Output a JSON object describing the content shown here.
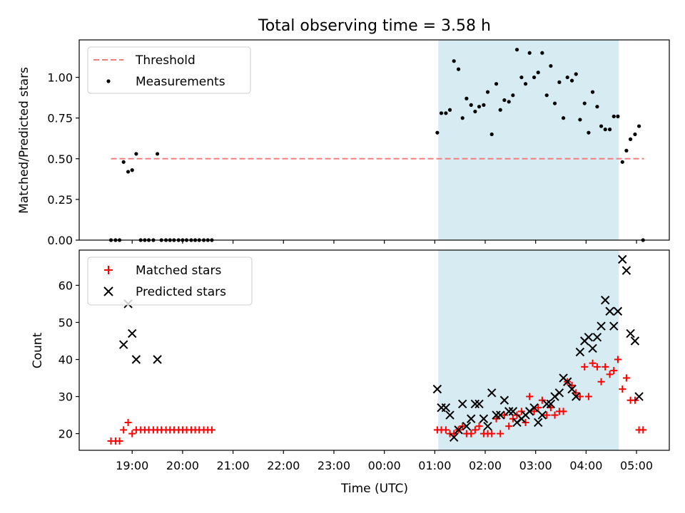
{
  "title": "Total observing time = 3.58 h",
  "colors": {
    "threshold": "#f08080",
    "measurements": "#000000",
    "matched": "#ff0000",
    "predicted": "#000000",
    "shade": "#add8e6"
  },
  "chart_data": [
    {
      "type": "scatter",
      "ylabel": "Matched/Predicted stars",
      "xlim_hours": [
        17.95,
        29.65
      ],
      "ylim": [
        0.0,
        1.23
      ],
      "yticks": [
        0.0,
        0.25,
        0.5,
        0.75,
        1.0
      ],
      "ytick_labels": [
        "0.00",
        "0.25",
        "0.50",
        "0.75",
        "1.00"
      ],
      "xtick_hours": [
        19,
        20,
        21,
        22,
        23,
        24,
        25,
        26,
        27,
        28,
        29
      ],
      "show_xtick_labels": false,
      "shaded_region_hours": [
        25.07,
        28.65
      ],
      "legend": {
        "position": "upper-left",
        "entries": [
          "Threshold",
          "Measurements"
        ]
      },
      "threshold": {
        "name": "Threshold",
        "y": 0.5,
        "x_range_hours": [
          18.58,
          29.15
        ],
        "style": "dashed"
      },
      "series": [
        {
          "name": "Measurements",
          "marker": "dot",
          "points": [
            [
              18.58,
              0.0
            ],
            [
              18.67,
              0.0
            ],
            [
              18.75,
              0.0
            ],
            [
              18.83,
              0.48
            ],
            [
              18.92,
              0.42
            ],
            [
              19.0,
              0.43
            ],
            [
              19.08,
              0.53
            ],
            [
              19.17,
              0.0
            ],
            [
              19.25,
              0.0
            ],
            [
              19.33,
              0.0
            ],
            [
              19.42,
              0.0
            ],
            [
              19.5,
              0.53
            ],
            [
              19.58,
              0.0
            ],
            [
              19.67,
              0.0
            ],
            [
              19.75,
              0.0
            ],
            [
              19.83,
              0.0
            ],
            [
              19.92,
              0.0
            ],
            [
              20.0,
              0.0
            ],
            [
              20.08,
              0.0
            ],
            [
              20.17,
              0.0
            ],
            [
              20.25,
              0.0
            ],
            [
              20.33,
              0.0
            ],
            [
              20.42,
              0.0
            ],
            [
              20.5,
              0.0
            ],
            [
              20.58,
              0.0
            ],
            [
              25.05,
              0.66
            ],
            [
              25.13,
              0.78
            ],
            [
              25.22,
              0.78
            ],
            [
              25.3,
              0.8
            ],
            [
              25.38,
              1.1
            ],
            [
              25.47,
              1.05
            ],
            [
              25.55,
              0.75
            ],
            [
              25.63,
              0.87
            ],
            [
              25.72,
              0.83
            ],
            [
              25.8,
              0.79
            ],
            [
              25.88,
              0.82
            ],
            [
              25.97,
              0.83
            ],
            [
              26.05,
              0.91
            ],
            [
              26.13,
              0.65
            ],
            [
              26.22,
              0.96
            ],
            [
              26.3,
              0.8
            ],
            [
              26.38,
              0.86
            ],
            [
              26.47,
              0.85
            ],
            [
              26.55,
              0.89
            ],
            [
              26.63,
              1.17
            ],
            [
              26.72,
              1.0
            ],
            [
              26.8,
              0.96
            ],
            [
              26.88,
              1.15
            ],
            [
              26.97,
              1.0
            ],
            [
              27.05,
              1.03
            ],
            [
              27.13,
              1.15
            ],
            [
              27.22,
              0.89
            ],
            [
              27.3,
              1.07
            ],
            [
              27.38,
              0.84
            ],
            [
              27.47,
              0.97
            ],
            [
              27.55,
              0.75
            ],
            [
              27.63,
              1.0
            ],
            [
              27.72,
              0.98
            ],
            [
              27.8,
              1.02
            ],
            [
              27.88,
              0.74
            ],
            [
              27.97,
              0.84
            ],
            [
              28.05,
              0.66
            ],
            [
              28.13,
              0.91
            ],
            [
              28.22,
              0.82
            ],
            [
              28.3,
              0.7
            ],
            [
              28.38,
              0.68
            ],
            [
              28.47,
              0.68
            ],
            [
              28.55,
              0.76
            ],
            [
              28.63,
              0.76
            ],
            [
              28.72,
              0.48
            ],
            [
              28.8,
              0.55
            ],
            [
              28.88,
              0.62
            ],
            [
              28.97,
              0.65
            ],
            [
              29.05,
              0.7
            ],
            [
              29.13,
              0.0
            ]
          ]
        }
      ]
    },
    {
      "type": "scatter",
      "ylabel": "Count",
      "xlabel": "Time (UTC)",
      "xlim_hours": [
        17.95,
        29.65
      ],
      "ylim": [
        15.5,
        69.5
      ],
      "yticks": [
        20,
        30,
        40,
        50,
        60
      ],
      "ytick_labels": [
        "20",
        "30",
        "40",
        "50",
        "60"
      ],
      "xtick_hours": [
        19,
        20,
        21,
        22,
        23,
        24,
        25,
        26,
        27,
        28,
        29
      ],
      "xtick_labels": [
        "19:00",
        "20:00",
        "21:00",
        "22:00",
        "23:00",
        "00:00",
        "01:00",
        "02:00",
        "03:00",
        "04:00",
        "05:00"
      ],
      "shaded_region_hours": [
        25.07,
        28.65
      ],
      "legend": {
        "position": "upper-left",
        "entries": [
          "Matched stars",
          "Predicted stars"
        ]
      },
      "series": [
        {
          "name": "Matched stars",
          "marker": "plus",
          "points": [
            [
              18.58,
              18
            ],
            [
              18.67,
              18
            ],
            [
              18.75,
              18
            ],
            [
              18.83,
              21
            ],
            [
              18.92,
              23
            ],
            [
              19.0,
              20
            ],
            [
              19.08,
              21
            ],
            [
              19.17,
              21
            ],
            [
              19.25,
              21
            ],
            [
              19.33,
              21
            ],
            [
              19.42,
              21
            ],
            [
              19.5,
              21
            ],
            [
              19.58,
              21
            ],
            [
              19.67,
              21
            ],
            [
              19.75,
              21
            ],
            [
              19.83,
              21
            ],
            [
              19.92,
              21
            ],
            [
              20.0,
              21
            ],
            [
              20.08,
              21
            ],
            [
              20.17,
              21
            ],
            [
              20.25,
              21
            ],
            [
              20.33,
              21
            ],
            [
              20.42,
              21
            ],
            [
              20.5,
              21
            ],
            [
              20.58,
              21
            ],
            [
              25.05,
              21
            ],
            [
              25.13,
              21
            ],
            [
              25.22,
              21
            ],
            [
              25.3,
              20
            ],
            [
              25.38,
              20
            ],
            [
              25.47,
              21
            ],
            [
              25.55,
              22
            ],
            [
              25.63,
              20
            ],
            [
              25.72,
              20
            ],
            [
              25.8,
              21
            ],
            [
              25.88,
              22
            ],
            [
              25.97,
              20
            ],
            [
              26.05,
              20
            ],
            [
              26.13,
              20
            ],
            [
              26.22,
              24
            ],
            [
              26.3,
              20
            ],
            [
              26.38,
              25
            ],
            [
              26.47,
              22
            ],
            [
              26.55,
              24
            ],
            [
              26.63,
              25
            ],
            [
              26.72,
              26
            ],
            [
              26.8,
              23
            ],
            [
              26.88,
              30
            ],
            [
              26.97,
              26
            ],
            [
              27.05,
              27
            ],
            [
              27.13,
              29
            ],
            [
              27.22,
              25
            ],
            [
              27.3,
              27
            ],
            [
              27.38,
              25
            ],
            [
              27.47,
              26
            ],
            [
              27.55,
              26
            ],
            [
              27.63,
              34
            ],
            [
              27.72,
              33
            ],
            [
              27.8,
              31
            ],
            [
              27.88,
              30
            ],
            [
              27.97,
              38
            ],
            [
              28.05,
              30
            ],
            [
              28.13,
              39
            ],
            [
              28.22,
              38
            ],
            [
              28.3,
              34
            ],
            [
              28.38,
              38
            ],
            [
              28.47,
              36
            ],
            [
              28.55,
              37
            ],
            [
              28.63,
              40
            ],
            [
              28.72,
              32
            ],
            [
              28.8,
              35
            ],
            [
              28.88,
              29
            ],
            [
              28.97,
              29
            ],
            [
              29.05,
              21
            ],
            [
              29.13,
              21
            ]
          ]
        },
        {
          "name": "Predicted stars",
          "marker": "x",
          "points": [
            [
              18.83,
              44
            ],
            [
              18.92,
              55
            ],
            [
              19.0,
              47
            ],
            [
              19.08,
              40
            ],
            [
              19.5,
              40
            ],
            [
              25.05,
              32
            ],
            [
              25.13,
              27
            ],
            [
              25.22,
              27
            ],
            [
              25.3,
              25
            ],
            [
              25.38,
              19
            ],
            [
              25.47,
              21
            ],
            [
              25.55,
              28
            ],
            [
              25.63,
              22
            ],
            [
              25.72,
              24
            ],
            [
              25.8,
              28
            ],
            [
              25.88,
              28
            ],
            [
              25.97,
              24
            ],
            [
              26.05,
              22
            ],
            [
              26.13,
              31
            ],
            [
              26.22,
              25
            ],
            [
              26.3,
              25
            ],
            [
              26.38,
              29
            ],
            [
              26.47,
              26
            ],
            [
              26.55,
              26
            ],
            [
              26.63,
              23
            ],
            [
              26.72,
              24
            ],
            [
              26.8,
              25
            ],
            [
              26.88,
              26
            ],
            [
              26.97,
              27
            ],
            [
              27.05,
              23
            ],
            [
              27.13,
              25
            ],
            [
              27.22,
              28
            ],
            [
              27.3,
              28
            ],
            [
              27.38,
              30
            ],
            [
              27.47,
              31
            ],
            [
              27.55,
              35
            ],
            [
              27.63,
              34
            ],
            [
              27.72,
              32
            ],
            [
              27.8,
              30
            ],
            [
              27.88,
              42
            ],
            [
              27.97,
              45
            ],
            [
              28.05,
              46
            ],
            [
              28.13,
              43
            ],
            [
              28.22,
              46
            ],
            [
              28.3,
              49
            ],
            [
              28.38,
              56
            ],
            [
              28.47,
              53
            ],
            [
              28.55,
              49
            ],
            [
              28.63,
              53
            ],
            [
              28.72,
              67
            ],
            [
              28.8,
              64
            ],
            [
              28.88,
              47
            ],
            [
              28.97,
              45
            ],
            [
              29.05,
              30
            ]
          ]
        }
      ]
    }
  ]
}
